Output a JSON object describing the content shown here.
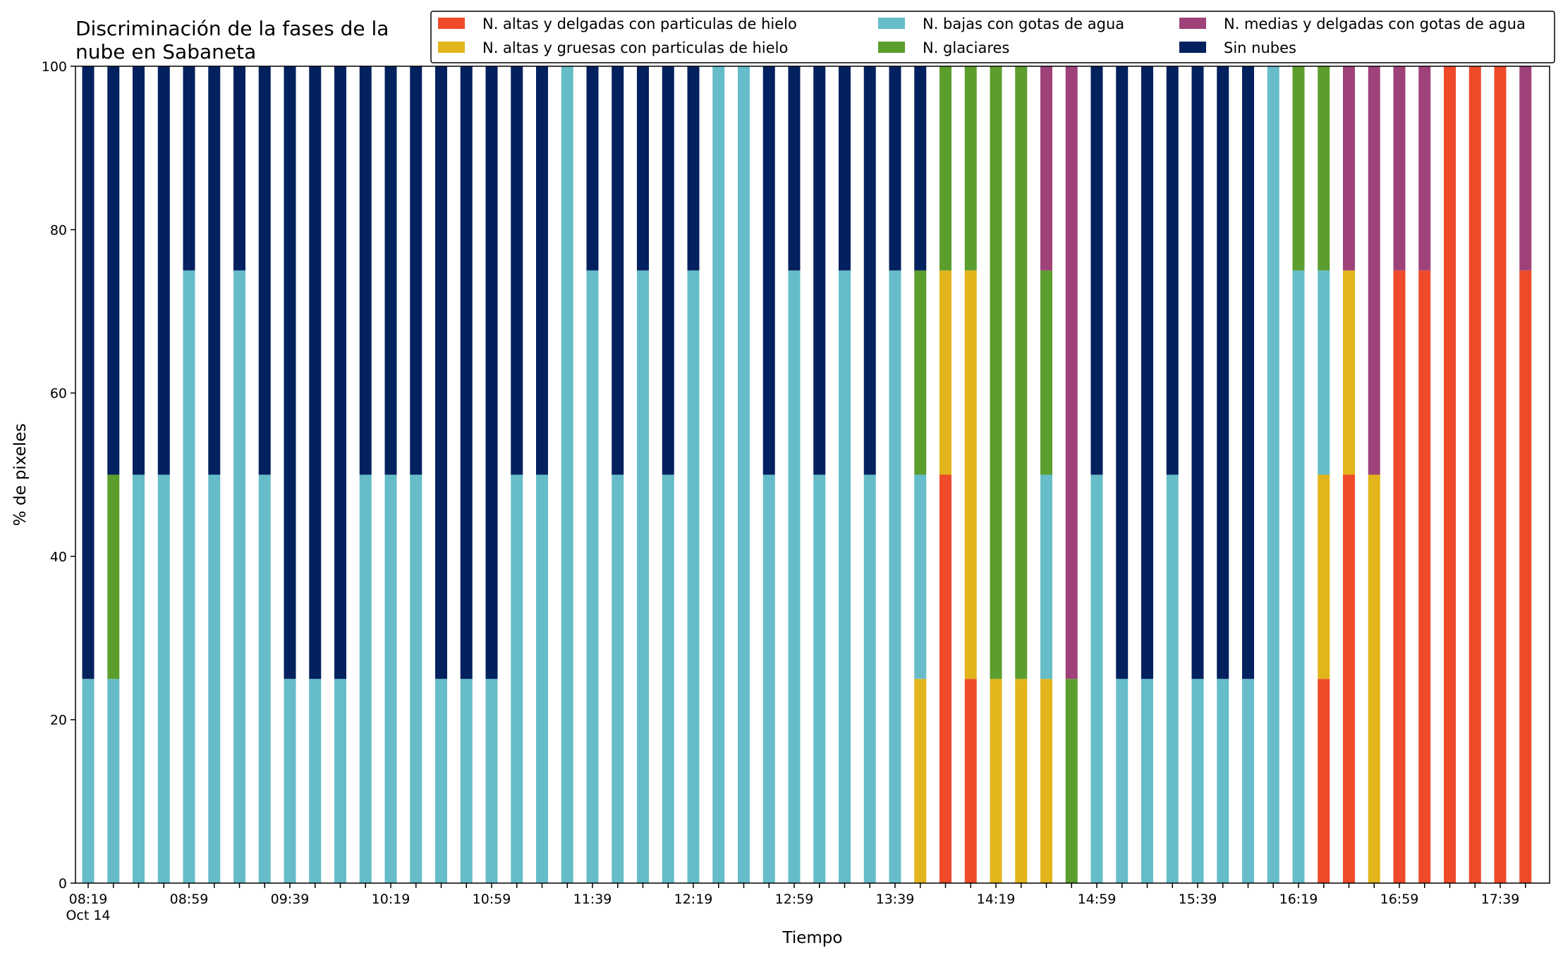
{
  "chart_data": {
    "type": "bar",
    "stacked": true,
    "title": [
      "Discriminación de la fases de la",
      "nube en Sabaneta"
    ],
    "xlabel": "Tiempo",
    "ylabel": "% de pixeles",
    "ylim": [
      0,
      100
    ],
    "yticks": [
      "0",
      "20",
      "40",
      "60",
      "80",
      "100"
    ],
    "grid": false,
    "legend_position": "top-right",
    "x_tick_labels": [
      {
        "index": 0,
        "label": "08:19",
        "sublabel": "Oct 14"
      },
      {
        "index": 4,
        "label": "08:59"
      },
      {
        "index": 8,
        "label": "09:39"
      },
      {
        "index": 12,
        "label": "10:19"
      },
      {
        "index": 16,
        "label": "10:59"
      },
      {
        "index": 20,
        "label": "11:39"
      },
      {
        "index": 24,
        "label": "12:19"
      },
      {
        "index": 28,
        "label": "12:59"
      },
      {
        "index": 32,
        "label": "13:39"
      },
      {
        "index": 36,
        "label": "14:19"
      },
      {
        "index": 40,
        "label": "14:59"
      },
      {
        "index": 44,
        "label": "15:39"
      },
      {
        "index": 48,
        "label": "16:19"
      },
      {
        "index": 52,
        "label": "16:59"
      },
      {
        "index": 56,
        "label": "17:39"
      }
    ],
    "series": [
      {
        "name": "N. altas y delgadas con particulas de hielo",
        "color": "#ef4a2a",
        "values": [
          0,
          0,
          0,
          0,
          0,
          0,
          0,
          0,
          0,
          0,
          0,
          0,
          0,
          0,
          0,
          0,
          0,
          0,
          0,
          0,
          0,
          0,
          0,
          0,
          0,
          0,
          0,
          0,
          0,
          0,
          0,
          0,
          0,
          0,
          50,
          25,
          0,
          0,
          0,
          0,
          0,
          0,
          0,
          0,
          0,
          0,
          0,
          0,
          0,
          25,
          50,
          0,
          75,
          75,
          100,
          100,
          100,
          75
        ]
      },
      {
        "name": "N. altas y gruesas con particulas de hielo",
        "color": "#e3b51c",
        "values": [
          0,
          0,
          0,
          0,
          0,
          0,
          0,
          0,
          0,
          0,
          0,
          0,
          0,
          0,
          0,
          0,
          0,
          0,
          0,
          0,
          0,
          0,
          0,
          0,
          0,
          0,
          0,
          0,
          0,
          0,
          0,
          0,
          0,
          25,
          25,
          50,
          25,
          25,
          25,
          0,
          0,
          0,
          0,
          0,
          0,
          0,
          0,
          0,
          0,
          25,
          25,
          50,
          0,
          0,
          0,
          0,
          0,
          0
        ]
      },
      {
        "name": "N. bajas con gotas de agua",
        "color": "#66bdc9",
        "values": [
          25,
          25,
          50,
          50,
          75,
          50,
          75,
          50,
          25,
          25,
          25,
          50,
          50,
          50,
          25,
          25,
          25,
          50,
          50,
          100,
          75,
          50,
          75,
          50,
          75,
          100,
          100,
          50,
          75,
          50,
          75,
          50,
          75,
          25,
          0,
          0,
          0,
          0,
          25,
          0,
          50,
          25,
          25,
          50,
          25,
          25,
          25,
          100,
          75,
          25,
          0,
          0,
          0,
          0,
          0,
          0,
          0,
          0
        ]
      },
      {
        "name": "N. glaciares",
        "color": "#5c9e2e",
        "values": [
          0,
          25,
          0,
          0,
          0,
          0,
          0,
          0,
          0,
          0,
          0,
          0,
          0,
          0,
          0,
          0,
          0,
          0,
          0,
          0,
          0,
          0,
          0,
          0,
          0,
          0,
          0,
          0,
          0,
          0,
          0,
          0,
          0,
          25,
          25,
          25,
          75,
          75,
          25,
          25,
          0,
          0,
          0,
          0,
          0,
          0,
          0,
          0,
          25,
          25,
          0,
          0,
          0,
          0,
          0,
          0,
          0,
          0
        ]
      },
      {
        "name": "N. medias y delgadas con gotas de agua",
        "color": "#a0427a",
        "values": [
          0,
          0,
          0,
          0,
          0,
          0,
          0,
          0,
          0,
          0,
          0,
          0,
          0,
          0,
          0,
          0,
          0,
          0,
          0,
          0,
          0,
          0,
          0,
          0,
          0,
          0,
          0,
          0,
          0,
          0,
          0,
          0,
          0,
          0,
          0,
          0,
          0,
          0,
          25,
          75,
          0,
          0,
          0,
          0,
          0,
          0,
          0,
          0,
          0,
          0,
          25,
          50,
          25,
          25,
          0,
          0,
          0,
          25
        ]
      },
      {
        "name": "Sin nubes",
        "color": "#03215e",
        "values": [
          75,
          50,
          50,
          50,
          25,
          50,
          25,
          50,
          75,
          75,
          75,
          50,
          50,
          50,
          75,
          75,
          75,
          50,
          50,
          0,
          25,
          50,
          25,
          50,
          25,
          0,
          0,
          50,
          25,
          50,
          25,
          50,
          25,
          25,
          0,
          0,
          0,
          0,
          0,
          0,
          50,
          75,
          75,
          50,
          75,
          75,
          75,
          0,
          0,
          0,
          0,
          0,
          0,
          0,
          0,
          0,
          0,
          0
        ]
      }
    ]
  }
}
